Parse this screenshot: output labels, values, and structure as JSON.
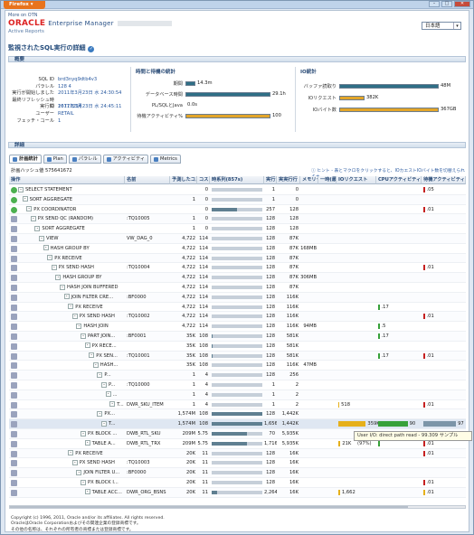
{
  "window": {
    "ff_label": "Firefox",
    "controls": [
      "–",
      "□",
      "✕"
    ]
  },
  "header": {
    "more_otn": "More on OTN",
    "brand": "ORACLE",
    "product": "Enterprise Manager",
    "sub": "Active Reports",
    "lang": "日本語"
  },
  "page_title": "監視されたSQL実行の詳細",
  "overview": {
    "title": "概要",
    "kv": [
      [
        "SQL ID",
        "brd3nyq9dtb4v3"
      ],
      [
        "パラレル",
        "128   4"
      ],
      [
        "実行が開始しました",
        "2011年3月23日 水 24:30:54"
      ],
      [
        "最終リフレッシュ時間",
        "2011年3月23日 水 24:45:11"
      ],
      [
        "実行ID",
        "16777216"
      ],
      [
        "ユーザー",
        "RETAIL"
      ],
      [
        "フェッチ・コール",
        "1"
      ]
    ],
    "time_stats": {
      "title": "時間と待機の統計",
      "rows": [
        {
          "label": "期間",
          "value": "14.3m",
          "frac": 0.12,
          "color": "#2f6f86"
        },
        {
          "label": "データベース時間",
          "value": "29.1h",
          "frac": 1.0,
          "color": "#2f6f86"
        },
        {
          "label": "PL/SQLとJava",
          "value": "0.0s",
          "frac": 0.0,
          "color": "#2f6f86"
        },
        {
          "label": "待機アクティビティ%",
          "value": "100",
          "frac": 1.0,
          "color": "#e2a52a"
        }
      ]
    },
    "io_stats": {
      "title": "IO統計",
      "rows": [
        {
          "label": "バッファ読取り",
          "value": "48M",
          "frac": 1.0,
          "color": "#2f6f86"
        },
        {
          "label": "IOリクエスト",
          "value": "382K",
          "frac": 0.25,
          "color": "#e2a52a"
        },
        {
          "label": "IOバイト数",
          "value": "367GB",
          "frac": 1.0,
          "color": "#e2a52a"
        }
      ]
    }
  },
  "details": {
    "title": "詳細",
    "tabs": [
      "計画統計",
      "Plan",
      "パラレル",
      "アクティビティ",
      "Metrics"
    ],
    "plan_hash": "計画ハッシュ値  575641672",
    "hint": "ヒント - 表とマクロをクリックすると、IOカエストIOバイト数を切替えられます",
    "headers": [
      "操作",
      "名前",
      "予測したコスト",
      "コスト",
      "時系列(857s)",
      "実行",
      "実実行行",
      "メモリー",
      "一時(最大)",
      "IOリクエスト",
      "CPUアクティビティ",
      "待機アクティビティ"
    ],
    "rows": [
      {
        "st": "g",
        "lv": 0,
        "op": "SELECT STATEMENT",
        "name": "",
        "est": "",
        "cost": "0",
        "tl": [
          0,
          0
        ],
        "exec": "1",
        "act": "0",
        "mem": "",
        "tmp": "",
        "io": "",
        "cpu": 0,
        "w": "",
        "wv": 0,
        "wv2": ".05",
        "wc": "#c62020",
        "wf": 0.03
      },
      {
        "st": "g",
        "lv": 1,
        "op": "SORT AGGREGATE",
        "name": "",
        "est": "1",
        "cost": "0",
        "tl": [
          0,
          0
        ],
        "exec": "1",
        "act": "0",
        "mem": "",
        "tmp": "",
        "io": "",
        "cpu": 0,
        "w": "",
        "wv2": "",
        "wc": "",
        "wf": 0
      },
      {
        "st": "g",
        "lv": 2,
        "op": "PX COORDINATOR",
        "name": "",
        "est": "",
        "cost": "0",
        "tl": [
          0,
          0.5
        ],
        "exec": "257",
        "act": "128",
        "mem": "",
        "tmp": "",
        "io": "",
        "cpu": 0,
        "w": "",
        "wv2": ".01",
        "wc": "#c62020",
        "wf": 0.03
      },
      {
        "st": "p",
        "lv": 3,
        "op": "PX SEND QC (RANDOM)",
        "name": ":TQ10005",
        "est": "1",
        "cost": "0",
        "tl": [
          0,
          0
        ],
        "exec": "128",
        "act": "128",
        "mem": "",
        "tmp": "",
        "io": "",
        "cpu": 0,
        "w": "",
        "wv2": "",
        "wc": "",
        "wf": 0
      },
      {
        "st": "p",
        "lv": 4,
        "op": "SORT AGGREGATE",
        "name": "",
        "est": "1",
        "cost": "0",
        "tl": [
          0,
          0
        ],
        "exec": "128",
        "act": "128",
        "mem": "",
        "tmp": "",
        "io": "",
        "cpu": 0,
        "w": "",
        "wv2": "",
        "wc": "",
        "wf": 0
      },
      {
        "st": "p",
        "lv": 5,
        "op": "VIEW",
        "name": "VW_DAG_0",
        "est": "4,722",
        "cost": "114",
        "tl": [
          0,
          0
        ],
        "exec": "128",
        "act": "87K",
        "mem": "",
        "tmp": "",
        "io": "",
        "cpu": 0,
        "w": "",
        "wv2": "",
        "wc": "",
        "wf": 0
      },
      {
        "st": "p",
        "lv": 6,
        "op": "HASH GROUP BY",
        "name": "",
        "est": "4,722",
        "cost": "114",
        "tl": [
          0,
          0
        ],
        "exec": "128",
        "act": "87K",
        "mem": "168MB",
        "tmp": "",
        "io": "",
        "cpu": 0,
        "w": "",
        "wv2": "",
        "wc": "",
        "wf": 0
      },
      {
        "st": "p",
        "lv": 7,
        "op": "PX RECEIVE",
        "name": "",
        "est": "4,722",
        "cost": "114",
        "tl": [
          0,
          0
        ],
        "exec": "128",
        "act": "87K",
        "mem": "",
        "tmp": "",
        "io": "",
        "cpu": 0,
        "w": "",
        "wv2": "",
        "wc": "",
        "wf": 0
      },
      {
        "st": "p",
        "lv": 8,
        "op": "PX SEND HASH",
        "name": ":TQ10004",
        "est": "4,722",
        "cost": "114",
        "tl": [
          0,
          0
        ],
        "exec": "128",
        "act": "87K",
        "mem": "",
        "tmp": "",
        "io": "",
        "cpu": 0,
        "w": "",
        "wv2": ".01",
        "wc": "#c62020",
        "wf": 0.03
      },
      {
        "st": "p",
        "lv": 9,
        "op": "HASH GROUP BY",
        "name": "",
        "est": "4,722",
        "cost": "114",
        "tl": [
          0,
          0
        ],
        "exec": "128",
        "act": "87K",
        "mem": "306MB",
        "tmp": "",
        "io": "",
        "cpu": 0,
        "w": "",
        "wv2": "",
        "wc": "",
        "wf": 0
      },
      {
        "st": "p",
        "lv": 10,
        "op": "HASH JOIN BUFFERED",
        "name": "",
        "est": "4,722",
        "cost": "114",
        "tl": [
          0,
          0
        ],
        "exec": "128",
        "act": "87K",
        "mem": "",
        "tmp": "",
        "io": "",
        "cpu": 0,
        "w": "",
        "wv2": "",
        "wc": "",
        "wf": 0
      },
      {
        "st": "p",
        "lv": 11,
        "op": "JOIN FILTER CRE...",
        "name": ":BF0000",
        "est": "4,722",
        "cost": "114",
        "tl": [
          0,
          0
        ],
        "exec": "128",
        "act": "116K",
        "mem": "",
        "tmp": "",
        "io": "",
        "cpu": 0,
        "w": "",
        "wv2": "",
        "wc": "",
        "wf": 0
      },
      {
        "st": "p",
        "lv": 12,
        "op": "PX RECEIVE",
        "name": "",
        "est": "4,722",
        "cost": "114",
        "tl": [
          0,
          0
        ],
        "exec": "128",
        "act": "116K",
        "mem": "",
        "tmp": "",
        "io": "",
        "cpu": 1,
        "w": ".17",
        "wv2": "",
        "wc": "",
        "wf": 0
      },
      {
        "st": "p",
        "lv": 13,
        "op": "PX SEND HASH",
        "name": ":TQ10002",
        "est": "4,722",
        "cost": "114",
        "tl": [
          0,
          0
        ],
        "exec": "128",
        "act": "116K",
        "mem": "",
        "tmp": "",
        "io": "",
        "cpu": 0,
        "w": "",
        "wv2": ".01",
        "wc": "#c62020",
        "wf": 0.03
      },
      {
        "st": "p",
        "lv": 14,
        "op": "HASH JOIN",
        "name": "",
        "est": "4,722",
        "cost": "114",
        "tl": [
          0,
          0
        ],
        "exec": "128",
        "act": "116K",
        "mem": "94MB",
        "tmp": "",
        "io": "",
        "cpu": 1,
        "w": ".5",
        "wv2": "",
        "wc": "",
        "wf": 0
      },
      {
        "st": "p",
        "lv": 15,
        "op": "PART JOIN...",
        "name": ":BF0001",
        "est": "35K",
        "cost": "108",
        "tl": [
          0,
          0.02
        ],
        "exec": "128",
        "act": "581K",
        "mem": "",
        "tmp": "",
        "io": "",
        "cpu": 1,
        "w": ".17",
        "wv2": "",
        "wc": "",
        "wf": 0
      },
      {
        "st": "p",
        "lv": 16,
        "op": "PX RECE...",
        "name": "",
        "est": "35K",
        "cost": "108",
        "tl": [
          0,
          0.02
        ],
        "exec": "128",
        "act": "581K",
        "mem": "",
        "tmp": "",
        "io": "",
        "cpu": 0,
        "w": "",
        "wv2": "",
        "wc": "",
        "wf": 0
      },
      {
        "st": "p",
        "lv": 17,
        "op": "PX SEN...",
        "name": ":TQ10001",
        "est": "35K",
        "cost": "108",
        "tl": [
          0,
          0.02
        ],
        "exec": "128",
        "act": "581K",
        "mem": "",
        "tmp": "",
        "io": "",
        "cpu": 1,
        "w": ".17",
        "wv2": ".01",
        "wc": "#c62020",
        "wf": 0.03
      },
      {
        "st": "p",
        "lv": 18,
        "op": "HASH...",
        "name": "",
        "est": "35K",
        "cost": "108",
        "tl": [
          0,
          0
        ],
        "exec": "128",
        "act": "116K",
        "mem": "47MB",
        "tmp": "",
        "io": "",
        "cpu": 0,
        "w": "",
        "wv2": "",
        "wc": "",
        "wf": 0
      },
      {
        "st": "p",
        "lv": 19,
        "op": "P...",
        "name": "",
        "est": "1",
        "cost": "4",
        "tl": [
          0,
          0
        ],
        "exec": "128",
        "act": "256",
        "mem": "",
        "tmp": "",
        "io": "",
        "cpu": 0,
        "w": "",
        "wv2": "",
        "wc": "",
        "wf": 0
      },
      {
        "st": "p",
        "lv": 20,
        "op": "P...",
        "name": ":TQ10000",
        "est": "1",
        "cost": "4",
        "tl": [
          0,
          0
        ],
        "exec": "1",
        "act": "2",
        "mem": "",
        "tmp": "",
        "io": "",
        "cpu": 0,
        "w": "",
        "wv2": "",
        "wc": "",
        "wf": 0
      },
      {
        "st": "p",
        "lv": 21,
        "op": "...",
        "name": "",
        "est": "1",
        "cost": "4",
        "tl": [
          0,
          0
        ],
        "exec": "1",
        "act": "2",
        "mem": "",
        "tmp": "",
        "io": "",
        "cpu": 0,
        "w": "",
        "wv2": "",
        "wc": "",
        "wf": 0
      },
      {
        "st": "p",
        "lv": 22,
        "op": "T...",
        "name": "DWR_SKU_ITEM",
        "est": "1",
        "cost": "4",
        "tl": [
          0,
          0
        ],
        "exec": "1",
        "act": "2",
        "mem": "",
        "tmp": "",
        "io": "518",
        "iof": 0.03,
        "cpu": 0,
        "w": "",
        "wv2": ".01",
        "wc": "#c62020",
        "wf": 0.03
      },
      {
        "st": "p",
        "lv": 19,
        "op": "PX...",
        "name": "",
        "est": "1,574M",
        "cost": "108",
        "tl": [
          0,
          1
        ],
        "exec": "128",
        "act": "1,442K",
        "mem": "",
        "tmp": "",
        "io": "",
        "cpu": 0,
        "w": "",
        "wv2": "",
        "wc": "",
        "wf": 0
      },
      {
        "st": "p",
        "lv": 20,
        "op": "T...",
        "name": "",
        "est": "1,574M",
        "cost": "108",
        "tl": [
          0,
          1
        ],
        "exec": "1,656",
        "act": "1,442K",
        "mem": "",
        "tmp": "",
        "io": "359K",
        "iof": 0.8,
        "cpu": 0.68,
        "w": "90",
        "wv2": "97",
        "wc": "#7c95a8",
        "wf": 0.95,
        "sel": true
      },
      {
        "st": "p",
        "lv": 15,
        "op": "PX BLOCK ...",
        "name": "DWB_RTL_SKU",
        "est": "209M",
        "cost": "5.75",
        "tl": [
          0,
          0.7
        ],
        "exec": "70",
        "act": "5,935K",
        "mem": "",
        "tmp": "",
        "io": "",
        "cpu": 0,
        "w": "",
        "wv2": "",
        "wc": "",
        "wf": 0
      },
      {
        "st": "p",
        "lv": 16,
        "op": "TABLE A...",
        "name": "DWB_RTL_TRX",
        "est": "209M",
        "cost": "5.75",
        "tl": [
          0,
          0.7
        ],
        "exec": "1,716",
        "act": "5,935K",
        "mem": "",
        "tmp": "",
        "io": "21K",
        "iof": 0.06,
        "cpu": 1,
        "w": "",
        "wv2": ".01",
        "wc": "#c62020",
        "wf": 0.03
      },
      {
        "st": "p",
        "lv": 12,
        "op": "PX RECEIVE",
        "name": "",
        "est": "20K",
        "cost": "11",
        "tl": [
          0,
          0
        ],
        "exec": "128",
        "act": "16K",
        "mem": "",
        "tmp": "",
        "io": "",
        "cpu": 0,
        "w": "",
        "wv2": ".01",
        "wc": "#c62020",
        "wf": 0.03
      },
      {
        "st": "p",
        "lv": 13,
        "op": "PX SEND HASH",
        "name": ":TQ10003",
        "est": "20K",
        "cost": "11",
        "tl": [
          0,
          0
        ],
        "exec": "128",
        "act": "16K",
        "mem": "",
        "tmp": "",
        "io": "",
        "cpu": 0,
        "w": "",
        "wv2": "",
        "wc": "",
        "wf": 0
      },
      {
        "st": "p",
        "lv": 14,
        "op": "JOIN FILTER U...",
        "name": ":BF0000",
        "est": "20K",
        "cost": "11",
        "tl": [
          0,
          0
        ],
        "exec": "128",
        "act": "16K",
        "mem": "",
        "tmp": "",
        "io": "",
        "cpu": 0,
        "w": "",
        "wv2": "",
        "wc": "",
        "wf": 0
      },
      {
        "st": "p",
        "lv": 15,
        "op": "PX BLOCK I...",
        "name": "",
        "est": "20K",
        "cost": "11",
        "tl": [
          0,
          0
        ],
        "exec": "128",
        "act": "16K",
        "mem": "",
        "tmp": "",
        "io": "",
        "cpu": 0,
        "w": "",
        "wv2": ".01",
        "wc": "#c62020",
        "wf": 0.03
      },
      {
        "st": "p",
        "lv": 16,
        "op": "TABLE ACC...",
        "name": "DWR_ORG_BSNS",
        "est": "20K",
        "cost": "11",
        "tl": [
          0,
          0.1
        ],
        "exec": "2,264",
        "act": "16K",
        "mem": "",
        "tmp": "",
        "io": "1,662",
        "iof": 0.05,
        "cpu": 0,
        "w": "",
        "wv2": ".01",
        "wc": "#e6b01b",
        "wf": 0.03
      }
    ],
    "tooltip": "User I/O: direct path read - 99.309 サンプル (97%)"
  },
  "footer": [
    "Copyright (c) 1996, 2011, Oracle and/or its affiliates. All rights reserved.",
    "OracleはOracle Corporationおよびその関連企業の登録商標です。",
    "その他の名称は、それぞれの所有者の商標または登録商標です。"
  ]
}
